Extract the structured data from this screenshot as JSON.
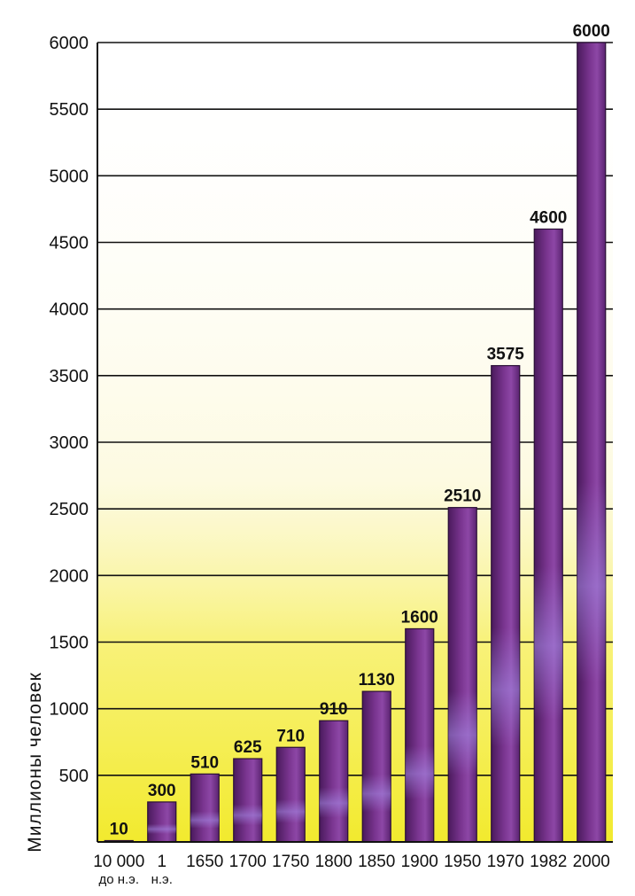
{
  "chart_data": {
    "type": "bar",
    "title": "",
    "xlabel": "",
    "ylabel": "Миллионы человек",
    "ylim": [
      0,
      6000
    ],
    "yticks": [
      500,
      1000,
      1500,
      2000,
      2500,
      3000,
      3500,
      4000,
      4500,
      5000,
      5500,
      6000
    ],
    "grid": true,
    "categories": [
      {
        "label": "10 000",
        "sublabel": "до н.э."
      },
      {
        "label": "1",
        "sublabel": "н.э."
      },
      {
        "label": "1650",
        "sublabel": ""
      },
      {
        "label": "1700",
        "sublabel": ""
      },
      {
        "label": "1750",
        "sublabel": ""
      },
      {
        "label": "1800",
        "sublabel": ""
      },
      {
        "label": "1850",
        "sublabel": ""
      },
      {
        "label": "1900",
        "sublabel": ""
      },
      {
        "label": "1950",
        "sublabel": ""
      },
      {
        "label": "1970",
        "sublabel": ""
      },
      {
        "label": "1982",
        "sublabel": ""
      },
      {
        "label": "2000",
        "sublabel": ""
      }
    ],
    "values": [
      10,
      300,
      510,
      625,
      710,
      910,
      1130,
      1600,
      2510,
      3575,
      4600,
      6000
    ],
    "data_labels": [
      "10",
      "300",
      "510",
      "625",
      "710",
      "910",
      "1130",
      "1600",
      "2510",
      "3575",
      "4600",
      "6000"
    ],
    "colors": {
      "bar_dark": "#4a1a5c",
      "bar_mid": "#8a3f9e",
      "bar_light": "#9b7ad8",
      "bar_edge": "#2a0f36",
      "background_low": "#f4ef3a",
      "background_high": "#ffffff",
      "grid": "#111111"
    }
  }
}
